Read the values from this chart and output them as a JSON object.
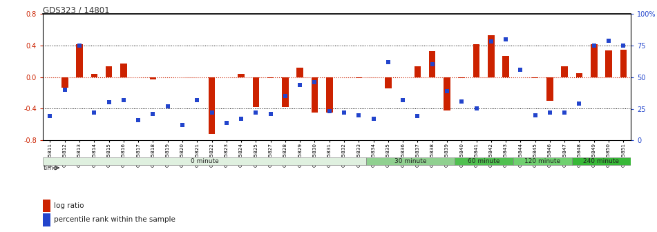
{
  "title": "GDS323 / 14801",
  "samples": [
    "GSM5811",
    "GSM5812",
    "GSM5813",
    "GSM5814",
    "GSM5815",
    "GSM5816",
    "GSM5817",
    "GSM5818",
    "GSM5819",
    "GSM5820",
    "GSM5821",
    "GSM5822",
    "GSM5823",
    "GSM5824",
    "GSM5825",
    "GSM5827",
    "GSM5828",
    "GSM5829",
    "GSM5830",
    "GSM5831",
    "GSM5832",
    "GSM5833",
    "GSM5834",
    "GSM5835",
    "GSM5836",
    "GSM5837",
    "GSM5838",
    "GSM5839",
    "GSM5840",
    "GSM5841",
    "GSM5842",
    "GSM5843",
    "GSM5844",
    "GSM5845",
    "GSM5846",
    "GSM5847",
    "GSM5848",
    "GSM5849",
    "GSM5850",
    "GSM5851"
  ],
  "log_ratio": [
    0.0,
    -0.13,
    0.42,
    0.04,
    0.14,
    0.17,
    0.0,
    -0.03,
    0.0,
    0.0,
    0.0,
    -0.72,
    0.0,
    0.04,
    -0.38,
    -0.01,
    -0.38,
    0.12,
    -0.45,
    -0.45,
    0.0,
    -0.01,
    0.0,
    -0.14,
    0.0,
    0.14,
    0.33,
    -0.42,
    -0.01,
    0.42,
    0.53,
    0.27,
    0.0,
    -0.01,
    -0.3,
    0.14,
    0.05,
    0.42,
    0.34,
    0.35
  ],
  "percentile": [
    19,
    40,
    75,
    22,
    30,
    32,
    16,
    21,
    27,
    12,
    32,
    22,
    14,
    17,
    22,
    21,
    35,
    44,
    46,
    23,
    22,
    20,
    17,
    62,
    32,
    19,
    60,
    39,
    31,
    25,
    78,
    80,
    56,
    20,
    22,
    22,
    29,
    75,
    79,
    75
  ],
  "time_groups": [
    {
      "label": "0 minute",
      "start": 0,
      "end": 22,
      "color": "#dff0df"
    },
    {
      "label": "30 minute",
      "start": 22,
      "end": 28,
      "color": "#90d090"
    },
    {
      "label": "60 minute",
      "start": 28,
      "end": 32,
      "color": "#50c050"
    },
    {
      "label": "120 minute",
      "start": 32,
      "end": 36,
      "color": "#70d070"
    },
    {
      "label": "240 minute",
      "start": 36,
      "end": 40,
      "color": "#38b838"
    }
  ],
  "bar_color": "#cc2200",
  "dot_color": "#2244cc",
  "left_yticks": [
    -0.8,
    -0.4,
    0.0,
    0.4,
    0.8
  ],
  "right_yticks": [
    0,
    25,
    50,
    75,
    100
  ],
  "ylim": [
    -0.8,
    0.8
  ],
  "pct_ylim": [
    0,
    100
  ]
}
